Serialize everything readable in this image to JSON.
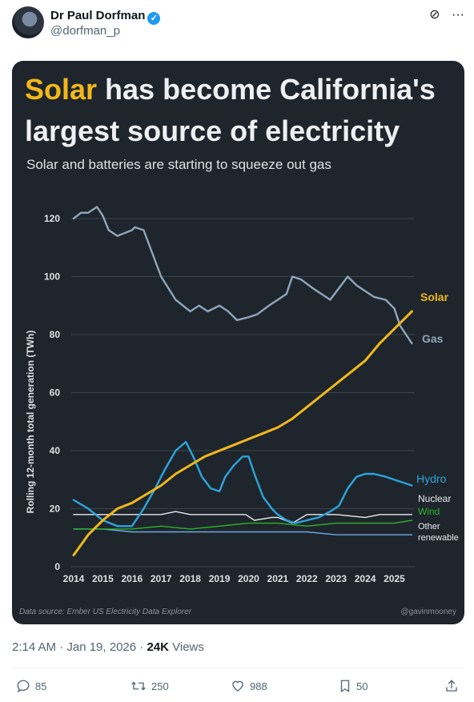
{
  "tweet": {
    "author_name": "Dr Paul Dorfman",
    "handle": "@dorfman_p",
    "time": "2:14 AM · Jan 19, 2026 · ",
    "views_count": "24K",
    "views_label": " Views",
    "replies": "85",
    "retweets": "250",
    "likes": "988",
    "bookmarks": "50"
  },
  "card": {
    "title_highlight": "Solar",
    "title_rest_1": " has become California's",
    "title_line_2": "largest source of electricity",
    "subtitle": "Solar and batteries are starting to squeeze out gas",
    "source": "Data source: Ember US Electricity Data Explorer",
    "credit": "@gavinmooney"
  },
  "chart_data": {
    "type": "line",
    "ylabel": "Rolling 12-month total generation (TWh)",
    "ylim": [
      0,
      120
    ],
    "yticks": [
      0,
      20,
      40,
      60,
      80,
      100,
      120
    ],
    "xlim": [
      2014,
      2025.7
    ],
    "xticks": [
      2014,
      2015,
      2016,
      2017,
      2018,
      2019,
      2020,
      2021,
      2022,
      2023,
      2024,
      2025
    ],
    "grid": true,
    "legend": "direct labels at right end",
    "series": [
      {
        "name": "Gas",
        "color": "#8fa6bd",
        "x": [
          2014,
          2014.25,
          2014.5,
          2014.8,
          2015,
          2015.2,
          2015.5,
          2016,
          2016.1,
          2016.4,
          2016.7,
          2017,
          2017.5,
          2018,
          2018.3,
          2018.6,
          2019,
          2019.3,
          2019.6,
          2020,
          2020.3,
          2020.7,
          2021,
          2021.3,
          2021.5,
          2021.8,
          2022.2,
          2022.5,
          2022.8,
          2023.1,
          2023.4,
          2023.7,
          2024,
          2024.3,
          2024.7,
          2025,
          2025.2,
          2025.4,
          2025.6
        ],
        "y": [
          120,
          122,
          122,
          124,
          121,
          116,
          114,
          116,
          117,
          116,
          108,
          100,
          92,
          88,
          90,
          88,
          90,
          88,
          85,
          86,
          87,
          90,
          92,
          94,
          100,
          99,
          96,
          94,
          92,
          96,
          100,
          97,
          95,
          93,
          92,
          89,
          83,
          80,
          77
        ]
      },
      {
        "name": "Solar",
        "color": "#f2b81b",
        "x": [
          2014,
          2014.5,
          2015,
          2015.5,
          2016,
          2016.5,
          2017,
          2017.5,
          2018,
          2018.5,
          2019,
          2019.5,
          2020,
          2020.5,
          2021,
          2021.5,
          2022,
          2022.5,
          2023,
          2023.5,
          2024,
          2024.5,
          2025,
          2025.3,
          2025.6
        ],
        "y": [
          4,
          11,
          16,
          20,
          22,
          25,
          28,
          32,
          35,
          38,
          40,
          42,
          44,
          46,
          48,
          51,
          55,
          59,
          63,
          67,
          71,
          77,
          82,
          85,
          88
        ]
      },
      {
        "name": "Hydro",
        "color": "#2aa6dd",
        "x": [
          2014,
          2014.5,
          2015,
          2015.5,
          2016,
          2016.4,
          2016.8,
          2017.1,
          2017.5,
          2017.85,
          2018.1,
          2018.4,
          2018.7,
          2019,
          2019.2,
          2019.5,
          2019.8,
          2020,
          2020.2,
          2020.5,
          2020.8,
          2021,
          2021.3,
          2021.6,
          2022,
          2022.4,
          2022.8,
          2023.1,
          2023.4,
          2023.7,
          2024,
          2024.3,
          2024.7,
          2025,
          2025.3,
          2025.6
        ],
        "y": [
          23,
          20,
          16,
          14,
          14,
          20,
          27,
          33,
          40,
          43,
          38,
          31,
          27,
          26,
          31,
          35,
          38,
          38,
          32,
          24,
          20,
          18,
          16,
          15,
          16,
          17,
          19,
          21,
          27,
          31,
          32,
          32,
          31,
          30,
          29,
          28
        ]
      },
      {
        "name": "Nuclear",
        "color": "#e8ebee",
        "x": [
          2014,
          2015,
          2016,
          2017,
          2017.5,
          2018,
          2019,
          2019.9,
          2020.2,
          2020.8,
          2021,
          2021.5,
          2022,
          2023,
          2024,
          2024.5,
          2025,
          2025.6
        ],
        "y": [
          18,
          18,
          18,
          18,
          19,
          18,
          18,
          18,
          16,
          17,
          17,
          15,
          18,
          18,
          17,
          18,
          18,
          18
        ]
      },
      {
        "name": "Wind",
        "color": "#2ab52a",
        "x": [
          2014,
          2015,
          2016,
          2017,
          2018,
          2019,
          2020,
          2021,
          2022,
          2023,
          2024,
          2025,
          2025.6
        ],
        "y": [
          13,
          13,
          13,
          14,
          13,
          14,
          15,
          15,
          14,
          15,
          15,
          15,
          16
        ]
      },
      {
        "name": "Other renewable",
        "color": "#6fa9e6",
        "x": [
          2014,
          2015,
          2016,
          2017,
          2018,
          2019,
          2020,
          2021,
          2022,
          2023,
          2024,
          2025,
          2025.6
        ],
        "y": [
          13,
          13,
          12,
          12,
          12,
          12,
          12,
          12,
          12,
          11,
          11,
          11,
          11
        ]
      }
    ],
    "labels": {
      "solar": "Solar",
      "gas": "Gas",
      "hydro": "Hydro",
      "nuclear": "Nuclear",
      "wind": "Wind",
      "other_1": "Other",
      "other_2": "renewable"
    }
  }
}
